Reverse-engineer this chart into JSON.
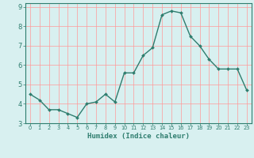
{
  "x": [
    0,
    1,
    2,
    3,
    4,
    5,
    6,
    7,
    8,
    9,
    10,
    11,
    12,
    13,
    14,
    15,
    16,
    17,
    18,
    19,
    20,
    21,
    22,
    23
  ],
  "y": [
    4.5,
    4.2,
    3.7,
    3.7,
    3.5,
    3.3,
    4.0,
    4.1,
    4.5,
    4.1,
    5.6,
    5.6,
    6.5,
    6.9,
    8.6,
    8.8,
    8.7,
    7.5,
    7.0,
    6.3,
    5.8,
    5.8,
    5.8,
    4.7
  ],
  "xlabel": "Humidex (Indice chaleur)",
  "ylim": [
    3.0,
    9.2
  ],
  "xlim": [
    -0.5,
    23.5
  ],
  "line_color": "#2e7d6e",
  "marker_color": "#2e7d6e",
  "bg_color": "#d8f0f0",
  "grid_color": "#ff9999",
  "tick_labels": [
    "0",
    "1",
    "2",
    "3",
    "4",
    "5",
    "6",
    "7",
    "8",
    "9",
    "10",
    "11",
    "12",
    "13",
    "14",
    "15",
    "16",
    "17",
    "18",
    "19",
    "20",
    "21",
    "22",
    "23"
  ],
  "yticks": [
    3,
    4,
    5,
    6,
    7,
    8,
    9
  ]
}
